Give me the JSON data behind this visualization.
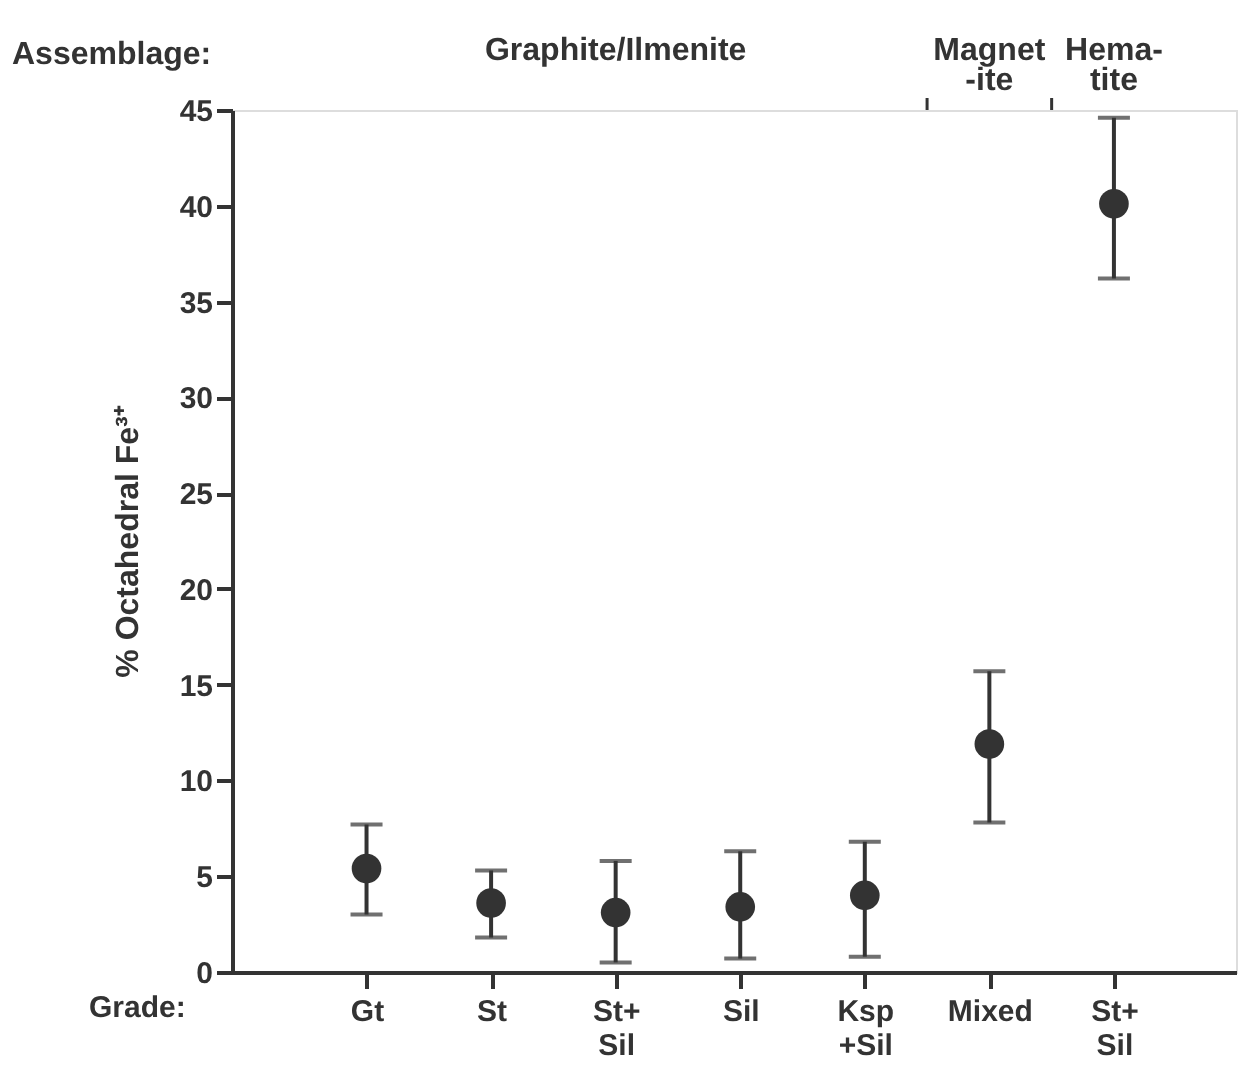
{
  "chart_data": {
    "type": "scatter",
    "categories": [
      "Gt",
      "St",
      "St+\nSil",
      "Sil",
      "Ksp\n+Sil",
      "Mixed",
      "St+\nSil"
    ],
    "values": [
      5.4,
      3.6,
      3.1,
      3.4,
      4.0,
      11.9,
      40.1
    ],
    "errors": [
      [
        3.0,
        7.7
      ],
      [
        1.8,
        5.3
      ],
      [
        0.5,
        5.8
      ],
      [
        0.7,
        6.3
      ],
      [
        0.8,
        6.8
      ],
      [
        7.8,
        15.7
      ],
      [
        36.2,
        44.6
      ]
    ],
    "color": "#333333",
    "marker": "circle",
    "ylim": [
      0,
      45
    ],
    "yticks": [
      0,
      5,
      10,
      15,
      20,
      25,
      30,
      35,
      40,
      45
    ],
    "xlabel": "Grade:",
    "ylabel": "% Octahedral Fe³⁺",
    "annotations": [
      "Assemblage:",
      "Graphite/Ilmenite",
      "Magnet\n-ite",
      "Hema-\ntite"
    ],
    "grid": false
  }
}
